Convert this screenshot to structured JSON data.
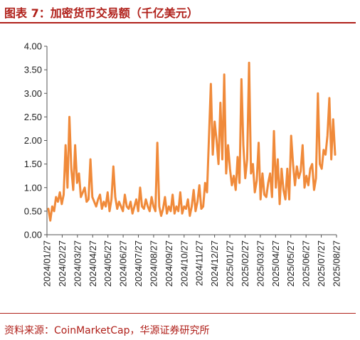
{
  "header": {
    "title": "图表 7：加密货币交易额（千亿美元）"
  },
  "footer": {
    "source": "资料来源：CoinMarketCap，华源证券研究所"
  },
  "colors": {
    "accent": "#b0201a",
    "series": "#f08a3a",
    "axis": "#555555"
  },
  "chart_data": {
    "type": "line",
    "title": "",
    "xlabel": "",
    "ylabel": "",
    "ylim": [
      0,
      4
    ],
    "y_ticks": [
      "0.00",
      "0.50",
      "1.00",
      "1.50",
      "2.00",
      "2.50",
      "3.00",
      "3.50",
      "4.00"
    ],
    "x_ticks": [
      "2024/01/27",
      "2024/02/27",
      "2024/03/27",
      "2024/04/27",
      "2024/05/27",
      "2024/06/27",
      "2024/07/27",
      "2024/08/27",
      "2024/09/27",
      "2024/10/27",
      "2024/11/27",
      "2024/12/27",
      "2025/01/27",
      "2025/02/27",
      "2025/03/27",
      "2025/04/27",
      "2025/05/27",
      "2025/06/27",
      "2025/07/27",
      "2025/08/27"
    ],
    "grid": false,
    "legend": "none",
    "series": [
      {
        "name": "",
        "values": [
          0.55,
          0.3,
          0.6,
          0.5,
          0.8,
          0.7,
          0.9,
          0.65,
          0.85,
          1.9,
          1.0,
          2.5,
          1.4,
          0.95,
          1.9,
          1.1,
          1.3,
          0.8,
          0.9,
          1.0,
          0.7,
          0.75,
          1.6,
          0.8,
          0.7,
          0.6,
          0.75,
          0.85,
          0.55,
          0.7,
          0.6,
          0.9,
          0.5,
          0.75,
          1.45,
          0.8,
          0.55,
          0.7,
          0.6,
          0.5,
          0.85,
          0.6,
          0.55,
          0.7,
          0.45,
          0.6,
          0.75,
          0.5,
          1.0,
          0.6,
          0.55,
          0.75,
          0.6,
          0.5,
          0.8,
          0.6,
          0.5,
          1.95,
          0.6,
          0.4,
          0.55,
          0.8,
          0.45,
          0.6,
          0.5,
          0.85,
          0.45,
          0.6,
          0.5,
          0.9,
          0.45,
          0.6,
          0.55,
          0.75,
          0.4,
          0.6,
          0.95,
          0.5,
          0.7,
          1.05,
          0.55,
          0.6,
          1.1,
          0.9,
          2.05,
          3.2,
          1.7,
          2.4,
          2.0,
          1.5,
          2.8,
          1.6,
          3.4,
          1.3,
          1.9,
          1.4,
          1.05,
          1.25,
          0.95,
          1.65,
          1.1,
          3.3,
          1.9,
          1.2,
          1.6,
          3.65,
          1.3,
          1.5,
          0.9,
          1.15,
          1.95,
          0.75,
          1.3,
          0.85,
          0.8,
          1.1,
          1.3,
          0.8,
          2.2,
          1.0,
          1.6,
          0.65,
          1.4,
          0.95,
          0.75,
          1.4,
          0.75,
          2.1,
          1.5,
          1.05,
          1.45,
          1.2,
          1.35,
          1.9,
          1.0,
          1.25,
          1.05,
          1.4,
          1.5,
          0.95,
          1.2,
          3.0,
          1.5,
          1.4,
          1.8,
          1.7,
          2.1,
          2.9,
          1.6,
          2.45,
          1.7
        ]
      }
    ]
  }
}
